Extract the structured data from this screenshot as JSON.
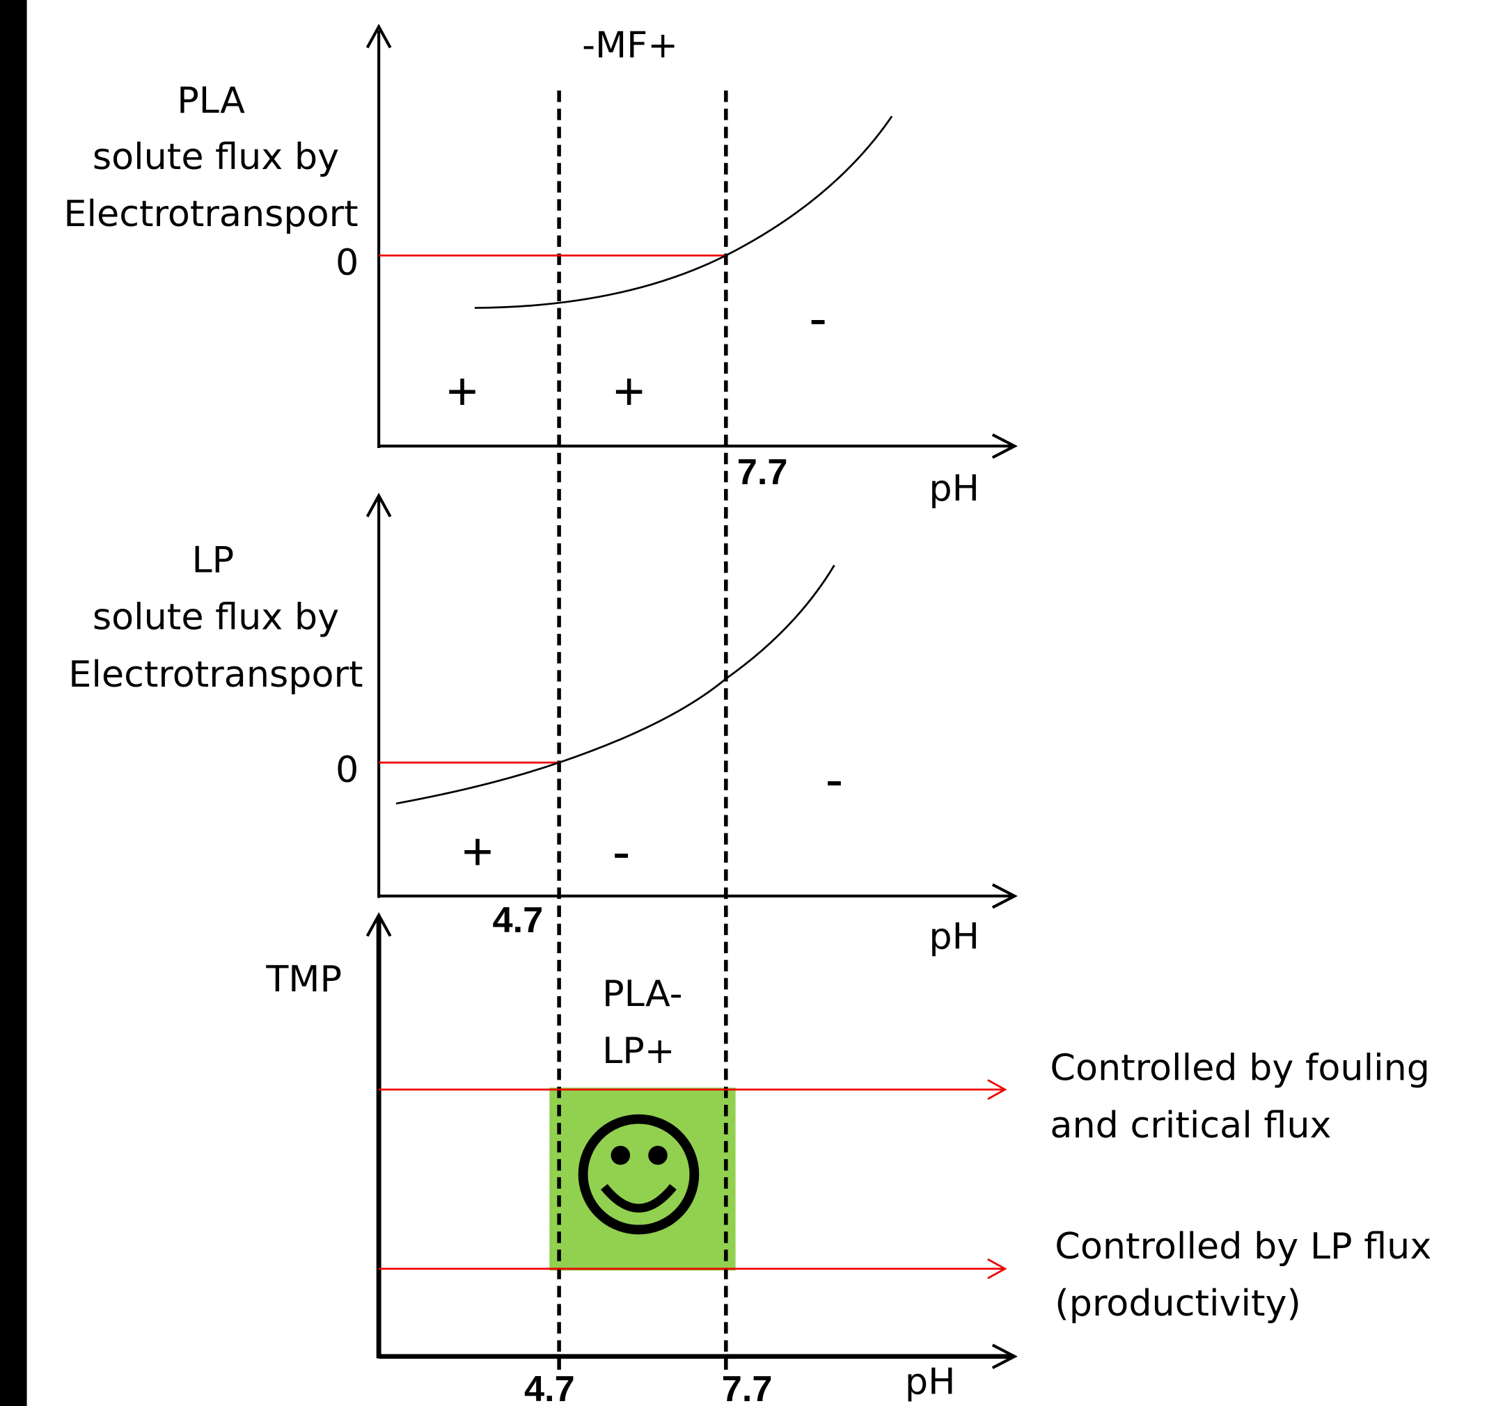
{
  "top_label": "-MF+",
  "panels": [
    {
      "ylabel": [
        "PLA",
        "solute flux by",
        "Electrotransport"
      ],
      "zero": "0",
      "tick": "7.7",
      "xlabel": "pH",
      "signs": [
        "+",
        "+",
        "-"
      ]
    },
    {
      "ylabel": [
        "LP",
        "solute flux by",
        "Electrotransport"
      ],
      "zero": "0",
      "tick": "4.7",
      "xlabel": "pH",
      "signs": [
        "+",
        "-",
        "-"
      ]
    },
    {
      "ylabel": "TMP",
      "zone": [
        "PLA-",
        "LP+"
      ],
      "ticks": [
        "4.7",
        "7.7"
      ],
      "xlabel": "pH"
    }
  ],
  "annotations": [
    [
      "Controlled by fouling",
      "and critical flux"
    ],
    [
      "Controlled by LP flux",
      "(productivity)"
    ]
  ]
}
